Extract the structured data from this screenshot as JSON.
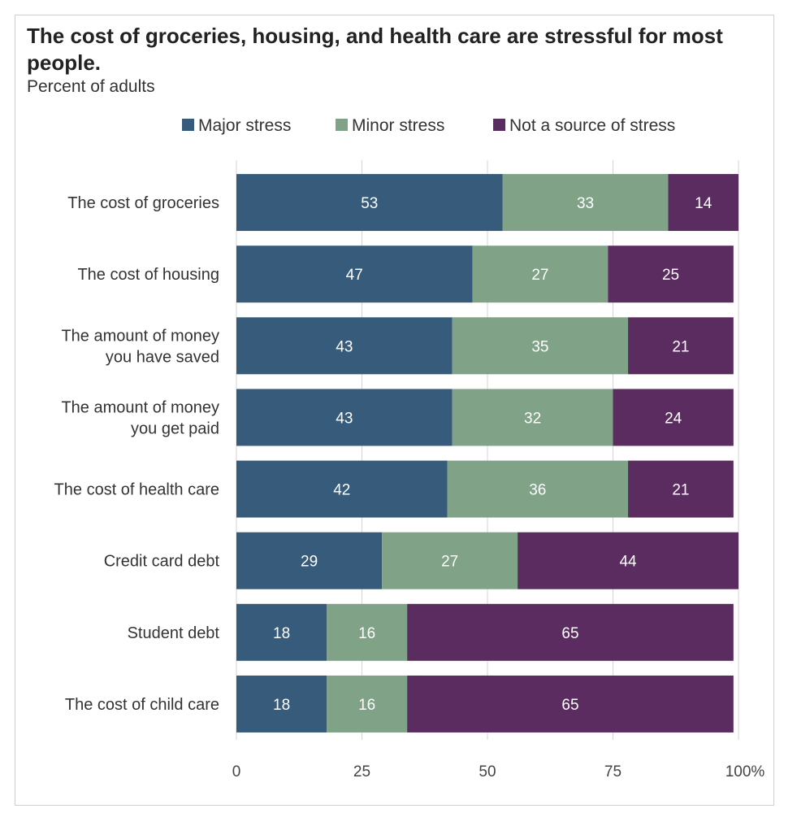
{
  "chart_data": {
    "type": "bar",
    "orientation": "horizontal",
    "stacked": true,
    "title": "The cost of groceries, housing, and health care are stressful for most people.",
    "subtitle": "Percent of adults",
    "categories": [
      [
        "The cost of groceries"
      ],
      [
        "The cost of housing"
      ],
      [
        "The amount of money",
        "you have saved"
      ],
      [
        "The amount of money",
        "you get paid"
      ],
      [
        "The cost of health care"
      ],
      [
        "Credit card debt"
      ],
      [
        "Student debt"
      ],
      [
        "The cost of child care"
      ]
    ],
    "series": [
      {
        "name": "Major stress",
        "color": "#365b7b",
        "values": [
          53,
          47,
          43,
          43,
          42,
          29,
          18,
          18
        ]
      },
      {
        "name": "Minor stress",
        "color": "#80a286",
        "values": [
          33,
          27,
          35,
          32,
          36,
          27,
          16,
          16
        ]
      },
      {
        "name": "Not a source of stress",
        "color": "#5a2c5f",
        "values": [
          14,
          25,
          21,
          24,
          21,
          44,
          65,
          65
        ]
      }
    ],
    "xlim": [
      0,
      100
    ],
    "x_ticks": [
      "0",
      "25",
      "50",
      "75",
      "100%"
    ],
    "x_tick_values": [
      0,
      25,
      50,
      75,
      100
    ],
    "grid": true,
    "legend": "top"
  }
}
